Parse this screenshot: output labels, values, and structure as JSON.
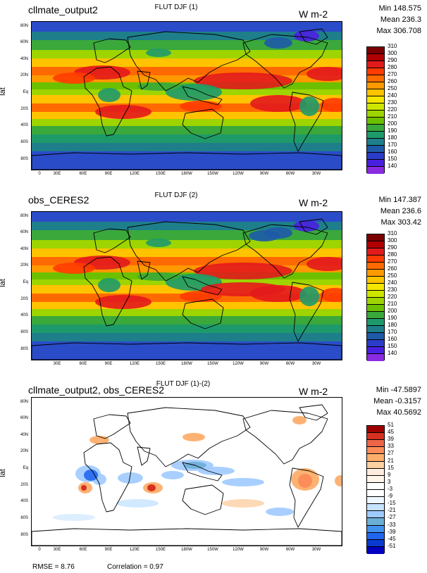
{
  "panels": [
    {
      "case_title": "cllmate_output2",
      "plot_title": "FLUT DJF (1)",
      "units": "W m-2",
      "stats": [
        "Min 148.575",
        "Mean 236.3",
        "Max 306.708"
      ],
      "colorbar": {
        "levels": [
          "310",
          "300",
          "290",
          "280",
          "270",
          "260",
          "250",
          "240",
          "230",
          "220",
          "210",
          "200",
          "190",
          "180",
          "170",
          "160",
          "150",
          "140"
        ],
        "colors": [
          "#7a0000",
          "#b00000",
          "#e31a1c",
          "#ff3b00",
          "#ff6a00",
          "#ff9900",
          "#ffc300",
          "#f5e600",
          "#cde600",
          "#9ed400",
          "#6cc000",
          "#3aa83a",
          "#1e9a6a",
          "#1e7f8a",
          "#1e5aa8",
          "#2a3cc8",
          "#4a20e0",
          "#8a2be2"
        ]
      },
      "map_type": "flut"
    },
    {
      "case_title": "obs_CERES2",
      "plot_title": "FLUT DJF (2)",
      "units": "W m-2",
      "stats": [
        "Min 147.387",
        "Mean 236.6",
        "Max 303.42"
      ],
      "colorbar": {
        "levels": [
          "310",
          "300",
          "290",
          "280",
          "270",
          "260",
          "250",
          "240",
          "230",
          "220",
          "210",
          "200",
          "190",
          "180",
          "170",
          "160",
          "150",
          "140"
        ],
        "colors": [
          "#7a0000",
          "#b00000",
          "#e31a1c",
          "#ff3b00",
          "#ff6a00",
          "#ff9900",
          "#ffc300",
          "#f5e600",
          "#cde600",
          "#9ed400",
          "#6cc000",
          "#3aa83a",
          "#1e9a6a",
          "#1e7f8a",
          "#1e5aa8",
          "#2a3cc8",
          "#4a20e0",
          "#8a2be2"
        ]
      },
      "map_type": "flut"
    },
    {
      "case_title": "cllmate_output2, obs_CERES2",
      "plot_title": "FLUT DJF (1)-(2)",
      "units": "W m-2",
      "stats": [
        "Min -47.5897",
        "Mean -0.3157",
        "Max 40.5692"
      ],
      "colorbar": {
        "levels": [
          "51",
          "45",
          "39",
          "33",
          "27",
          "21",
          "15",
          "9",
          "3",
          "-3",
          "-9",
          "-15",
          "-21",
          "-27",
          "-33",
          "-39",
          "-45",
          "-51"
        ],
        "colors": [
          "#9e0000",
          "#d7301f",
          "#ef6548",
          "#fc8d59",
          "#fdae6b",
          "#fdd0a2",
          "#feedde",
          "#fff5eb",
          "#ffffff",
          "#ffffff",
          "#eef7ff",
          "#c6e3ff",
          "#9ecaff",
          "#6baed6",
          "#4292f0",
          "#2166f0",
          "#0a3ad0",
          "#0000c0"
        ]
      },
      "map_type": "diff"
    }
  ],
  "axes": {
    "ylabel": "lat",
    "lat_ticks": [
      "80N",
      "60N",
      "40N",
      "20N",
      "Eq",
      "20S",
      "40S",
      "60S",
      "80S"
    ],
    "lon_ticks": [
      "0",
      "30E",
      "60E",
      "90E",
      "120E",
      "150E",
      "180W",
      "150W",
      "120W",
      "90W",
      "60W",
      "30W"
    ],
    "lon_ticks_panel2": [
      "30E",
      "60E",
      "90E",
      "120E",
      "150E",
      "180W",
      "150W",
      "120W",
      "90W",
      "60W",
      "30W"
    ]
  },
  "footer": {
    "rmse": "RMSE = 8.76",
    "correlation": "Correlation = 0.97"
  }
}
